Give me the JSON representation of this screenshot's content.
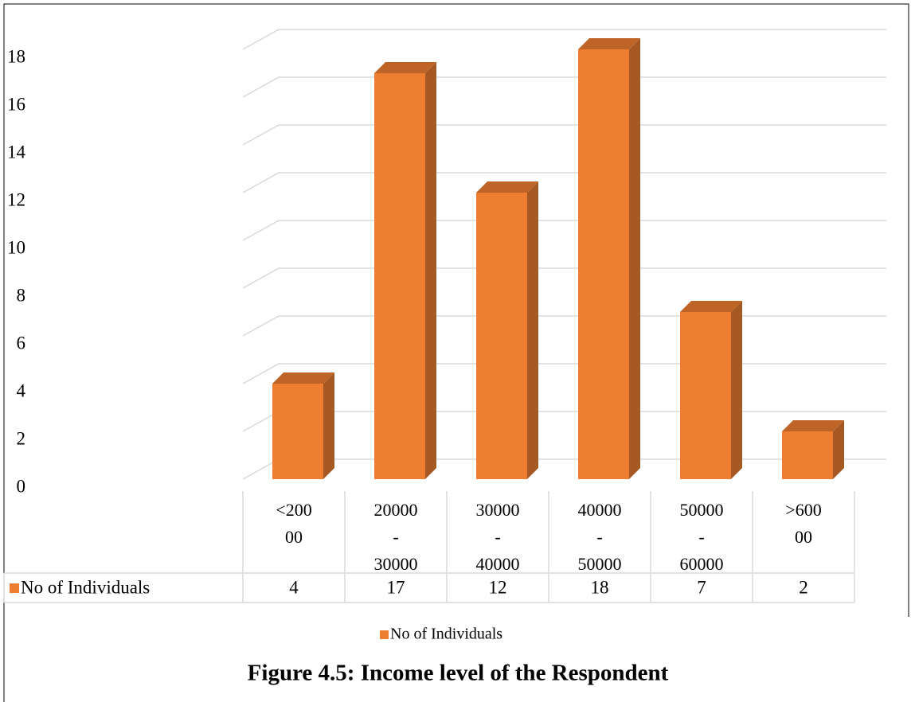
{
  "chart_data": {
    "type": "bar3d",
    "title": "Figure 4.5: Income level of the Respondent",
    "categories": [
      "<20000",
      "20000 - 30000",
      "30000 - 40000",
      "40000 - 50000",
      "50000 - 60000",
      ">60000"
    ],
    "series": [
      {
        "name": "No of Individuals",
        "color": "#ed7d31",
        "values": [
          4,
          17,
          12,
          18,
          7,
          2
        ]
      }
    ],
    "ylim": [
      0,
      18
    ],
    "yticks": [
      0,
      2,
      4,
      6,
      8,
      10,
      12,
      14,
      16,
      18
    ],
    "grid": true,
    "legend": "bottom",
    "data_table": true
  }
}
